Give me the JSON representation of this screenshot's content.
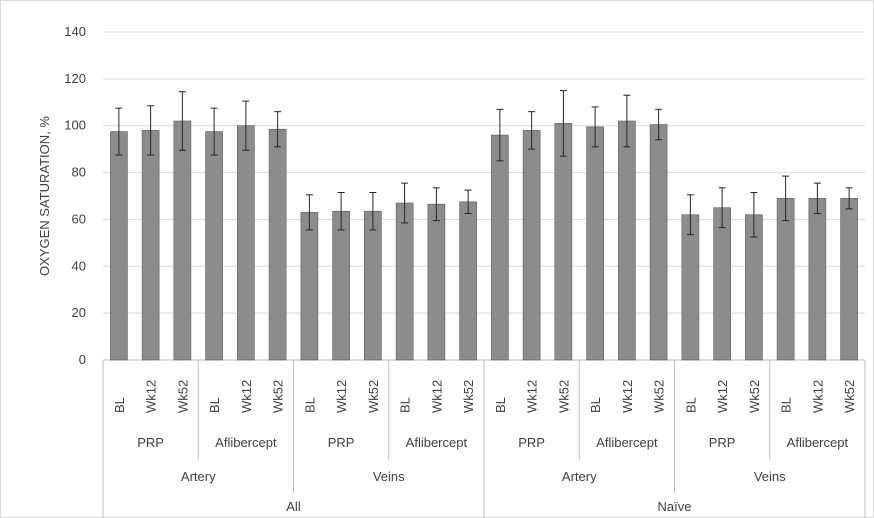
{
  "chart_data": {
    "type": "bar",
    "title": "",
    "xlabel": "",
    "ylabel": "OXYGEN SATURATION, %",
    "ylim": [
      0,
      140
    ],
    "yticks": [
      0,
      20,
      40,
      60,
      80,
      100,
      120,
      140
    ],
    "grid": "horizontal",
    "legend": "none",
    "bar_color": "#8c8c8c",
    "error_color": "#262626",
    "categories": [
      {
        "group": "All",
        "vessel": "Artery",
        "treatment": "PRP",
        "time": "BL"
      },
      {
        "group": "All",
        "vessel": "Artery",
        "treatment": "PRP",
        "time": "Wk12"
      },
      {
        "group": "All",
        "vessel": "Artery",
        "treatment": "PRP",
        "time": "Wk52"
      },
      {
        "group": "All",
        "vessel": "Artery",
        "treatment": "Aflibercept",
        "time": "BL"
      },
      {
        "group": "All",
        "vessel": "Artery",
        "treatment": "Aflibercept",
        "time": "Wk12"
      },
      {
        "group": "All",
        "vessel": "Artery",
        "treatment": "Aflibercept",
        "time": "Wk52"
      },
      {
        "group": "All",
        "vessel": "Veins",
        "treatment": "PRP",
        "time": "BL"
      },
      {
        "group": "All",
        "vessel": "Veins",
        "treatment": "PRP",
        "time": "Wk12"
      },
      {
        "group": "All",
        "vessel": "Veins",
        "treatment": "PRP",
        "time": "Wk52"
      },
      {
        "group": "All",
        "vessel": "Veins",
        "treatment": "Aflibercept",
        "time": "BL"
      },
      {
        "group": "All",
        "vessel": "Veins",
        "treatment": "Aflibercept",
        "time": "Wk12"
      },
      {
        "group": "All",
        "vessel": "Veins",
        "treatment": "Aflibercept",
        "time": "Wk52"
      },
      {
        "group": "Naïve",
        "vessel": "Artery",
        "treatment": "PRP",
        "time": "BL"
      },
      {
        "group": "Naïve",
        "vessel": "Artery",
        "treatment": "PRP",
        "time": "Wk12"
      },
      {
        "group": "Naïve",
        "vessel": "Artery",
        "treatment": "PRP",
        "time": "Wk52"
      },
      {
        "group": "Naïve",
        "vessel": "Artery",
        "treatment": "Aflibercept",
        "time": "BL"
      },
      {
        "group": "Naïve",
        "vessel": "Artery",
        "treatment": "Aflibercept",
        "time": "Wk12"
      },
      {
        "group": "Naïve",
        "vessel": "Artery",
        "treatment": "Aflibercept",
        "time": "Wk52"
      },
      {
        "group": "Naïve",
        "vessel": "Veins",
        "treatment": "PRP",
        "time": "BL"
      },
      {
        "group": "Naïve",
        "vessel": "Veins",
        "treatment": "PRP",
        "time": "Wk12"
      },
      {
        "group": "Naïve",
        "vessel": "Veins",
        "treatment": "PRP",
        "time": "Wk52"
      },
      {
        "group": "Naïve",
        "vessel": "Veins",
        "treatment": "Aflibercept",
        "time": "BL"
      },
      {
        "group": "Naïve",
        "vessel": "Veins",
        "treatment": "Aflibercept",
        "time": "Wk12"
      },
      {
        "group": "Naïve",
        "vessel": "Veins",
        "treatment": "Aflibercept",
        "time": "Wk52"
      }
    ],
    "values": [
      97.5,
      98,
      102,
      97.5,
      100,
      98.5,
      63,
      63.5,
      63.5,
      67,
      66.5,
      67.5,
      96,
      98,
      101,
      99.5,
      102,
      100.5,
      62,
      65,
      62,
      69,
      69,
      69
    ],
    "errors": [
      10,
      10.5,
      12.5,
      10,
      10.5,
      7.5,
      7.5,
      8,
      8,
      8.5,
      7,
      5,
      11,
      8,
      14,
      8.5,
      11,
      6.5,
      8.5,
      8.5,
      9.5,
      9.5,
      6.5,
      4.5
    ]
  }
}
